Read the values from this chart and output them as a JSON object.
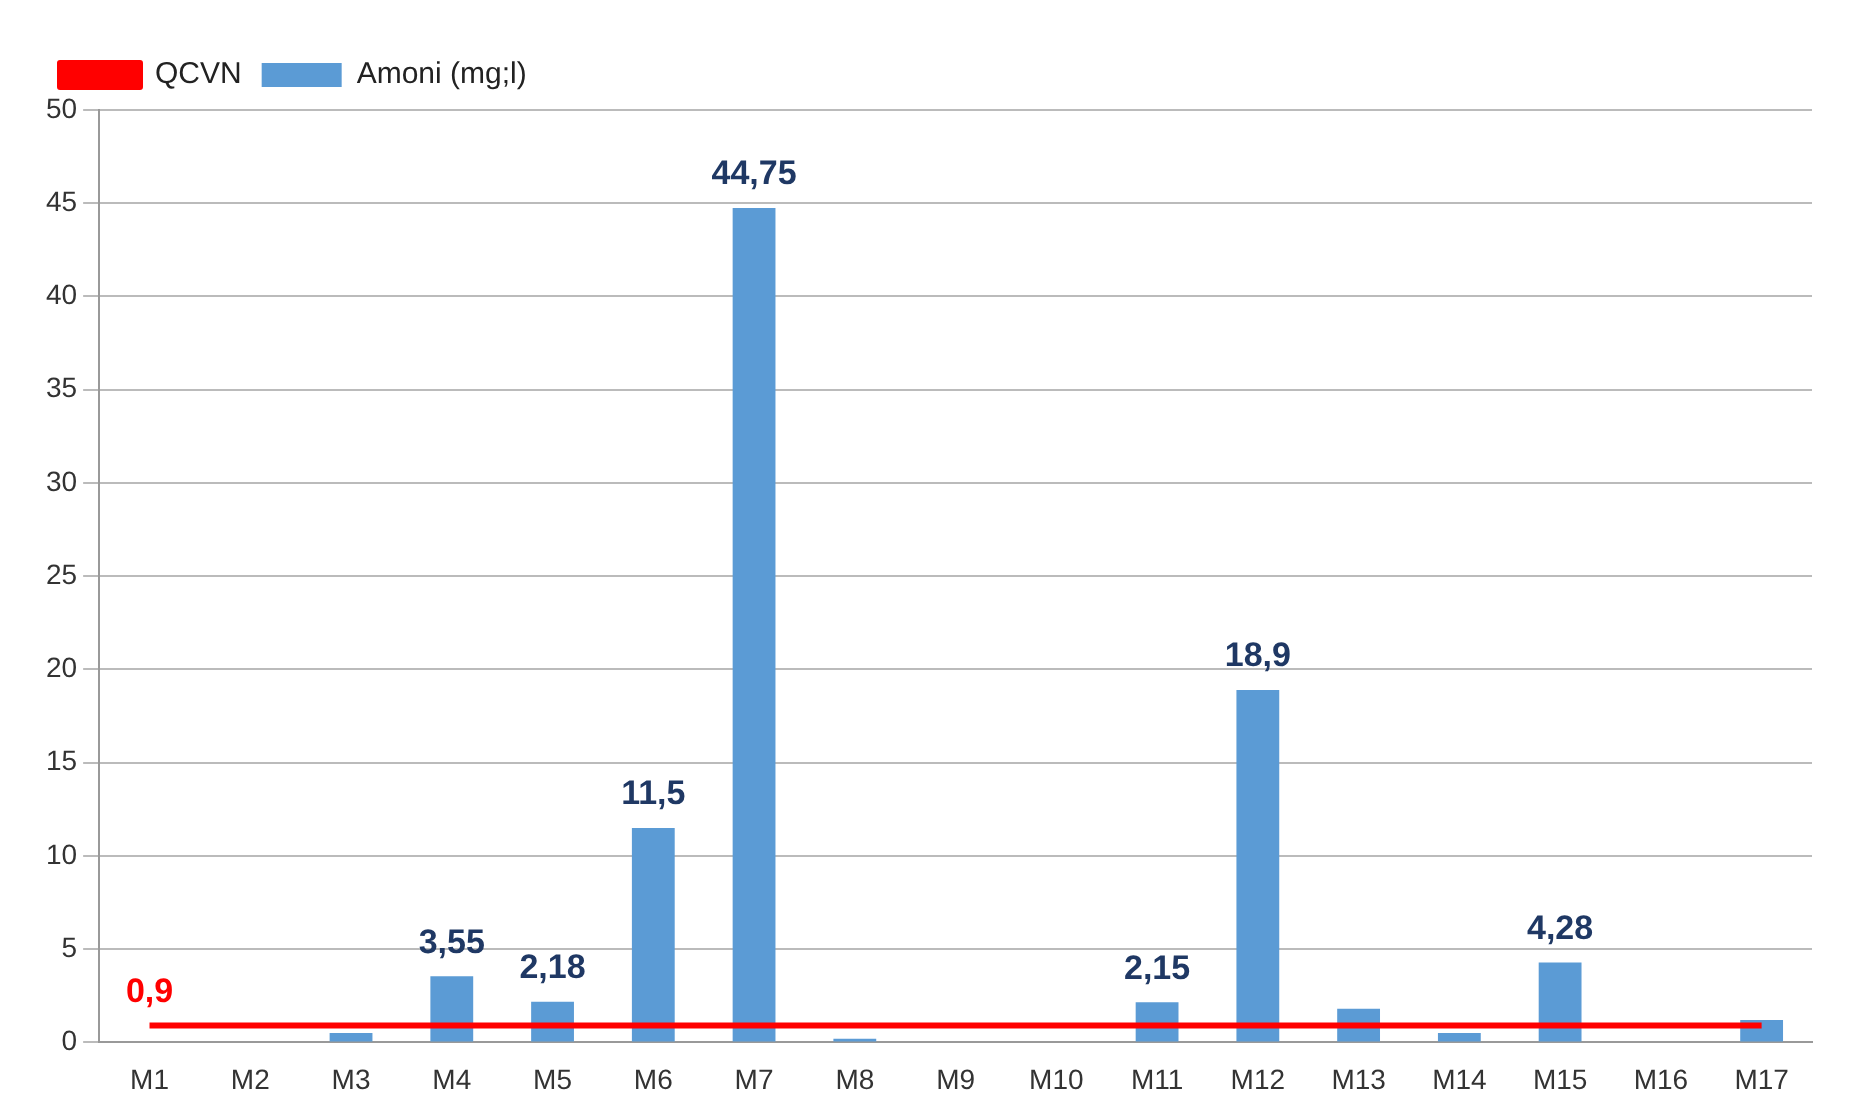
{
  "chart_data": {
    "type": "bar",
    "categories": [
      "M1",
      "M2",
      "M3",
      "M4",
      "M5",
      "M6",
      "M7",
      "M8",
      "M9",
      "M10",
      "M11",
      "M12",
      "M13",
      "M14",
      "M15",
      "M16",
      "M17"
    ],
    "series": [
      {
        "name": "Amoni (mg;l)",
        "color": "#5b9bd5",
        "values": [
          0,
          0,
          0.5,
          3.55,
          2.18,
          11.5,
          44.75,
          0.2,
          0,
          0,
          2.15,
          18.9,
          1.8,
          0.5,
          4.28,
          0,
          1.2
        ],
        "value_labels": [
          null,
          null,
          null,
          "3,55",
          "2,18",
          "11,5",
          "44,75",
          null,
          null,
          null,
          "2,15",
          "18,9",
          null,
          null,
          "4,28",
          null,
          null
        ]
      },
      {
        "name": "QCVN",
        "type": "line",
        "color": "#ff0000",
        "marker": "none",
        "values": [
          0.9,
          0.9,
          0.9,
          0.9,
          0.9,
          0.9,
          0.9,
          0.9,
          0.9,
          0.9,
          0.9,
          0.9,
          0.9,
          0.9,
          0.9,
          0.9,
          0.9
        ],
        "value_labels": [
          "0,9",
          null,
          null,
          null,
          null,
          null,
          null,
          null,
          null,
          null,
          null,
          null,
          null,
          null,
          null,
          null,
          null
        ]
      }
    ],
    "ylim": [
      0,
      50
    ],
    "yticks": [
      0,
      5,
      10,
      15,
      20,
      25,
      30,
      35,
      40,
      45,
      50
    ],
    "grid": "y",
    "legend": "top left"
  }
}
